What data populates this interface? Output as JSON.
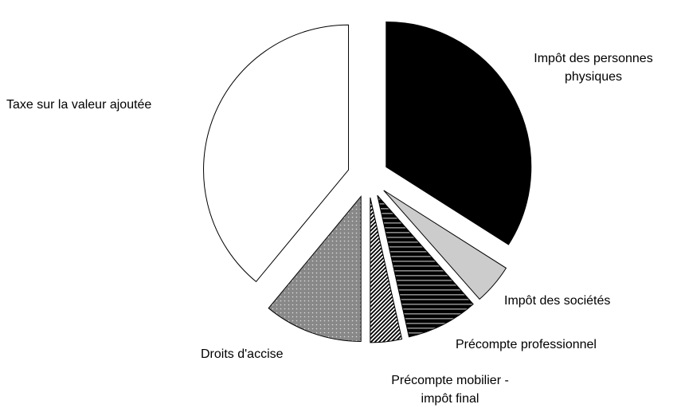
{
  "chart_data": {
    "type": "pie",
    "categories": [
      "Impôt des personnes physiques",
      "Impôt des sociétés",
      "Précompte professionnel",
      "Précompte mobilier - impôt final",
      "Droits d'accise",
      "Taxe sur la valeur ajoutée"
    ],
    "values": [
      34,
      4.5,
      8,
      3.5,
      11,
      39
    ],
    "colors": [
      "#000000",
      "#cccccc",
      "#555555",
      "#777777",
      "#888888",
      "#ffffff"
    ],
    "patterns": [
      "solid",
      "solid",
      "horizontal-stripes",
      "diagonal-hatch",
      "dots",
      "solid"
    ],
    "exploded": true
  }
}
